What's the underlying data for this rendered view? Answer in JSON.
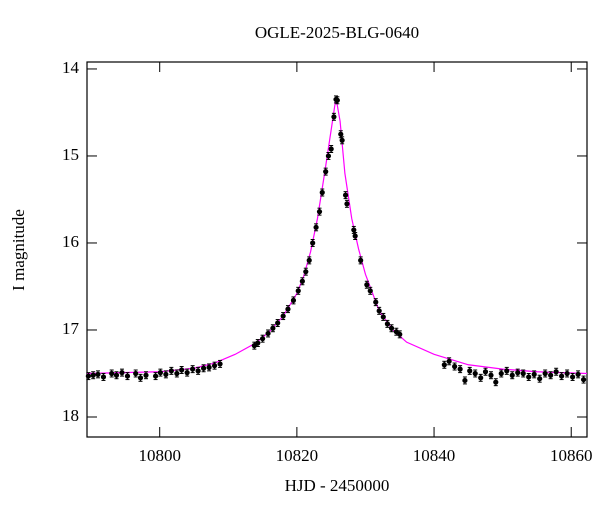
{
  "chart_data": {
    "type": "scatter",
    "title": "OGLE-2025-BLG-0640",
    "xlabel": "HJD - 2450000",
    "ylabel": "I magnitude",
    "xlim": [
      10789.4,
      10862.3
    ],
    "ylim": [
      13.92,
      18.23
    ],
    "y_inverted": true,
    "xticks": [
      10800,
      10820,
      10840,
      10860
    ],
    "yticks": [
      14,
      15,
      16,
      17,
      18
    ],
    "series": [
      {
        "color": "#000000",
        "yerr": 0.04,
        "x": [
          10789.6,
          10790.3,
          10791.0,
          10791.8,
          10793.0,
          10793.7,
          10794.5,
          10795.3,
          10796.5,
          10797.2,
          10798.0,
          10799.4,
          10800.1,
          10800.9,
          10801.7,
          10802.5,
          10803.2,
          10804.0,
          10804.8,
          10805.6,
          10806.4,
          10807.2,
          10808.0,
          10808.8,
          10813.8,
          10814.3,
          10815.0,
          10815.8,
          10816.5,
          10817.2,
          10818.0,
          10818.7,
          10819.5,
          10820.2,
          10820.8,
          10821.3,
          10821.8,
          10822.3,
          10822.8,
          10823.3,
          10823.7,
          10824.2,
          10824.6,
          10825.0,
          10825.4,
          10825.7,
          10825.9,
          10826.4,
          10826.6,
          10827.1,
          10827.3,
          10828.3,
          10828.5,
          10829.3,
          10830.2,
          10830.7,
          10831.5,
          10832.0,
          10832.6,
          10833.2,
          10833.8,
          10834.5,
          10835.0,
          10841.5,
          10842.2,
          10843.0,
          10843.8,
          10844.5,
          10845.2,
          10846.0,
          10846.8,
          10847.5,
          10848.3,
          10849.0,
          10849.8,
          10850.6,
          10851.4,
          10852.2,
          10853.0,
          10853.8,
          10854.6,
          10855.4,
          10856.2,
          10857.0,
          10857.8,
          10858.6,
          10859.4,
          10860.2,
          10861.0,
          10861.8
        ],
        "values": [
          17.53,
          17.52,
          17.51,
          17.54,
          17.5,
          17.52,
          17.49,
          17.53,
          17.5,
          17.55,
          17.52,
          17.53,
          17.49,
          17.51,
          17.47,
          17.5,
          17.46,
          17.49,
          17.45,
          17.47,
          17.44,
          17.43,
          17.41,
          17.39,
          17.18,
          17.15,
          17.1,
          17.04,
          16.98,
          16.92,
          16.84,
          16.76,
          16.66,
          16.55,
          16.44,
          16.33,
          16.2,
          16.0,
          15.82,
          15.64,
          15.42,
          15.18,
          15.0,
          14.92,
          14.55,
          14.35,
          14.36,
          14.75,
          14.82,
          15.45,
          15.55,
          15.85,
          15.92,
          16.2,
          16.48,
          16.55,
          16.68,
          16.78,
          16.85,
          16.93,
          16.98,
          17.02,
          17.05,
          17.4,
          17.36,
          17.42,
          17.45,
          17.58,
          17.47,
          17.5,
          17.55,
          17.48,
          17.52,
          17.6,
          17.5,
          17.47,
          17.52,
          17.49,
          17.5,
          17.54,
          17.51,
          17.56,
          17.5,
          17.52,
          17.48,
          17.53,
          17.5,
          17.54,
          17.51,
          17.57
        ]
      }
    ],
    "model": {
      "color": "#ff00ff",
      "x": [
        10789.4,
        10800,
        10805,
        10808,
        10811,
        10814,
        10816,
        10818,
        10820,
        10821,
        10822,
        10823,
        10824,
        10825,
        10825.7,
        10826.3,
        10827,
        10828,
        10829,
        10830,
        10832,
        10834,
        10836,
        10840,
        10845,
        10850,
        10855,
        10862.3
      ],
      "values": [
        17.5,
        17.48,
        17.44,
        17.38,
        17.28,
        17.15,
        17.02,
        16.84,
        16.58,
        16.38,
        16.1,
        15.72,
        15.22,
        14.7,
        14.33,
        14.6,
        15.2,
        15.72,
        16.07,
        16.36,
        16.78,
        17.0,
        17.14,
        17.28,
        17.4,
        17.45,
        17.48,
        17.5
      ]
    }
  }
}
